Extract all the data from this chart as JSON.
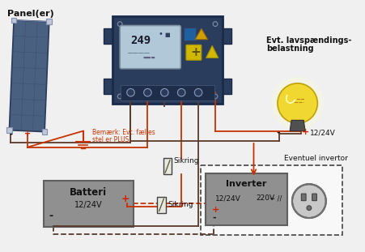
{
  "background_color": "#f0f0f0",
  "panel_label": "Panel(er)",
  "battery_label": "Batteri",
  "battery_voltage": "12/24V",
  "inverter_label": "Inverter",
  "inverter_voltage": "12/24V",
  "inverter_ac": "220V",
  "load_label1": "Evt. lavspændings-",
  "load_label2": "belastning",
  "load_voltage": "12/24V",
  "inverter_box_label": "Eventuel invertor",
  "fuse1_label": "Sikring",
  "fuse2_label": "Sikring",
  "note_label1": "Bemærk: Evt. fælles",
  "note_label2": "stel er PLUS",
  "wire_red": "#c83200",
  "wire_dark": "#5a3a2a",
  "box_fill": "#909090",
  "box_edge": "#606060",
  "controller_fill": "#2a3d5c",
  "controller_edge": "#1a2a4a",
  "dashed_box_color": "#444444",
  "panel_fill": "#4a6080",
  "panel_edge": "#2a3a5a",
  "panel_cell": "#3a5070",
  "bulb_fill": "#f0d830",
  "bulb_glow": "#ffe060",
  "bulb_base": "#505050",
  "display_fill": "#b0c8d8",
  "display_edge": "#8090a0",
  "btn_fill": "#1e3050",
  "btn_edge": "#607090",
  "socket_fill": "#c8c8c8",
  "socket_hole": "#707070",
  "ground_color": "#c83200",
  "plus_color": "#cc2200",
  "text_color": "#111111"
}
